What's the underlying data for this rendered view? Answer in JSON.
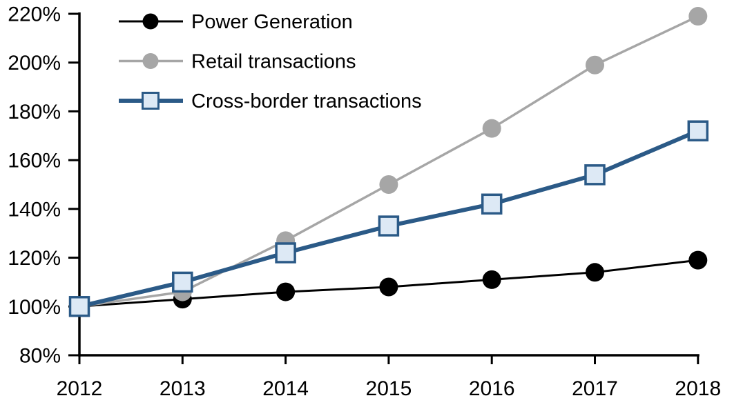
{
  "chart": {
    "background_color": "#FFFFFF",
    "axis_color": "#000000",
    "text_color": "#000000"
  },
  "chart_data": {
    "type": "line",
    "title": "",
    "xlabel": "",
    "ylabel": "",
    "x": [
      2012,
      2013,
      2014,
      2015,
      2016,
      2017,
      2018
    ],
    "x_tick_labels": [
      "2012",
      "2013",
      "2014",
      "2015",
      "2016",
      "2017",
      "2018"
    ],
    "y_tick_labels": [
      "80%",
      "100%",
      "120%",
      "140%",
      "160%",
      "180%",
      "200%",
      "220%"
    ],
    "ylim": [
      80,
      220
    ],
    "ytick_step": 20,
    "ytick_format": "percent",
    "grid": false,
    "legend_position": "top-left",
    "series": [
      {
        "name": "Power Generation",
        "color": "#000000",
        "marker": "circle",
        "marker_fill": "#000000",
        "line_width": 3,
        "values": [
          100,
          103,
          106,
          108,
          111,
          114,
          119
        ]
      },
      {
        "name": "Retail transactions",
        "color": "#A6A6A6",
        "marker": "circle",
        "marker_fill": "#A6A6A6",
        "line_width": 3.5,
        "values": [
          100,
          106,
          127,
          150,
          173,
          199,
          219
        ]
      },
      {
        "name": "Cross-border transactions",
        "color": "#2B5A87",
        "marker": "square",
        "marker_fill": "#DDE9F5",
        "line_width": 6,
        "values": [
          100,
          110,
          122,
          133,
          142,
          154,
          172
        ]
      }
    ]
  }
}
